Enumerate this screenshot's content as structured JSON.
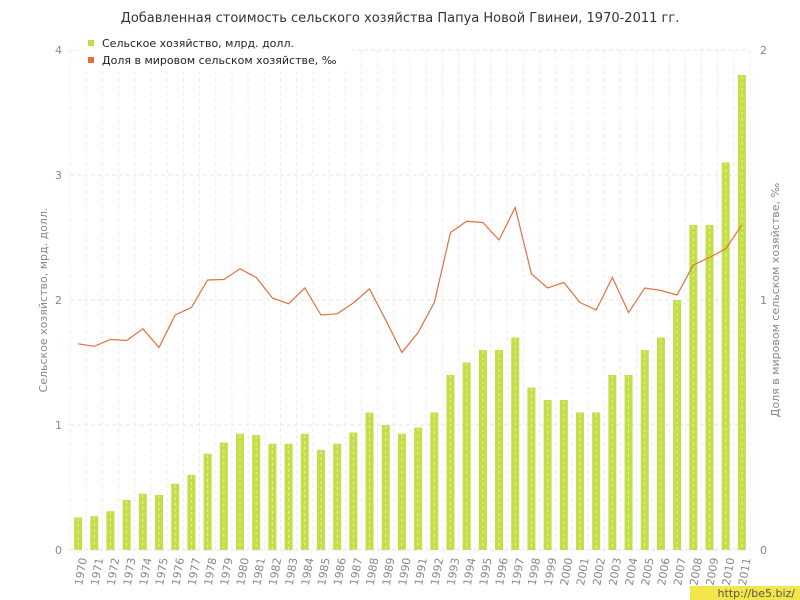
{
  "chart_data": {
    "type": "bar+line",
    "title": "Добавленная стоимость сельского хозяйства Папуа Новой Гвинеи, 1970-2011 гг.",
    "ylabel_left": "Сельское хозяйство, мрд. долл.",
    "ylabel_right": "Доля в мировом сельском хозяйстве, ‰",
    "ylim_left": [
      0,
      4
    ],
    "ylim_right": [
      0,
      2
    ],
    "yticks_left": [
      "0",
      "1",
      "2",
      "3",
      "4"
    ],
    "yticks_right": [
      "0",
      "1",
      "2"
    ],
    "grid": true,
    "legend_position": "top-left",
    "categories": [
      "1970",
      "1971",
      "1972",
      "1973",
      "1974",
      "1975",
      "1976",
      "1977",
      "1978",
      "1979",
      "1980",
      "1981",
      "1982",
      "1983",
      "1984",
      "1985",
      "1986",
      "1987",
      "1988",
      "1989",
      "1990",
      "1991",
      "1992",
      "1993",
      "1994",
      "1995",
      "1996",
      "1997",
      "1998",
      "1999",
      "2000",
      "2001",
      "2002",
      "2003",
      "2004",
      "2005",
      "2006",
      "2007",
      "2008",
      "2009",
      "2010",
      "2011"
    ],
    "series": [
      {
        "name": "Сельское хозяйство, млрд. долл.",
        "type": "bar",
        "axis": "left",
        "color": "#c3df48",
        "values": [
          0.26,
          0.27,
          0.31,
          0.4,
          0.45,
          0.44,
          0.53,
          0.6,
          0.77,
          0.86,
          0.93,
          0.92,
          0.85,
          0.85,
          0.93,
          0.8,
          0.85,
          0.94,
          1.1,
          1.0,
          0.93,
          0.98,
          1.1,
          1.4,
          1.5,
          1.6,
          1.6,
          1.7,
          1.3,
          1.2,
          1.2,
          1.1,
          1.1,
          1.4,
          1.4,
          1.6,
          1.7,
          2.0,
          2.6,
          2.6,
          3.1,
          3.8
        ]
      },
      {
        "name": "Доля в мировом сельском хозяйстве, ‰",
        "type": "line",
        "axis": "right",
        "color": "#e07040",
        "values": [
          0.825,
          0.815,
          0.842,
          0.838,
          0.885,
          0.81,
          0.94,
          0.97,
          1.08,
          1.082,
          1.125,
          1.09,
          1.008,
          0.985,
          1.048,
          0.94,
          0.945,
          0.988,
          1.045,
          0.92,
          0.79,
          0.87,
          0.99,
          1.27,
          1.315,
          1.31,
          1.24,
          1.37,
          1.105,
          1.048,
          1.07,
          0.99,
          0.96,
          1.09,
          0.95,
          1.048,
          1.038,
          1.02,
          1.14,
          1.17,
          1.205,
          1.3
        ]
      }
    ]
  },
  "watermark": "http://be5.biz/"
}
